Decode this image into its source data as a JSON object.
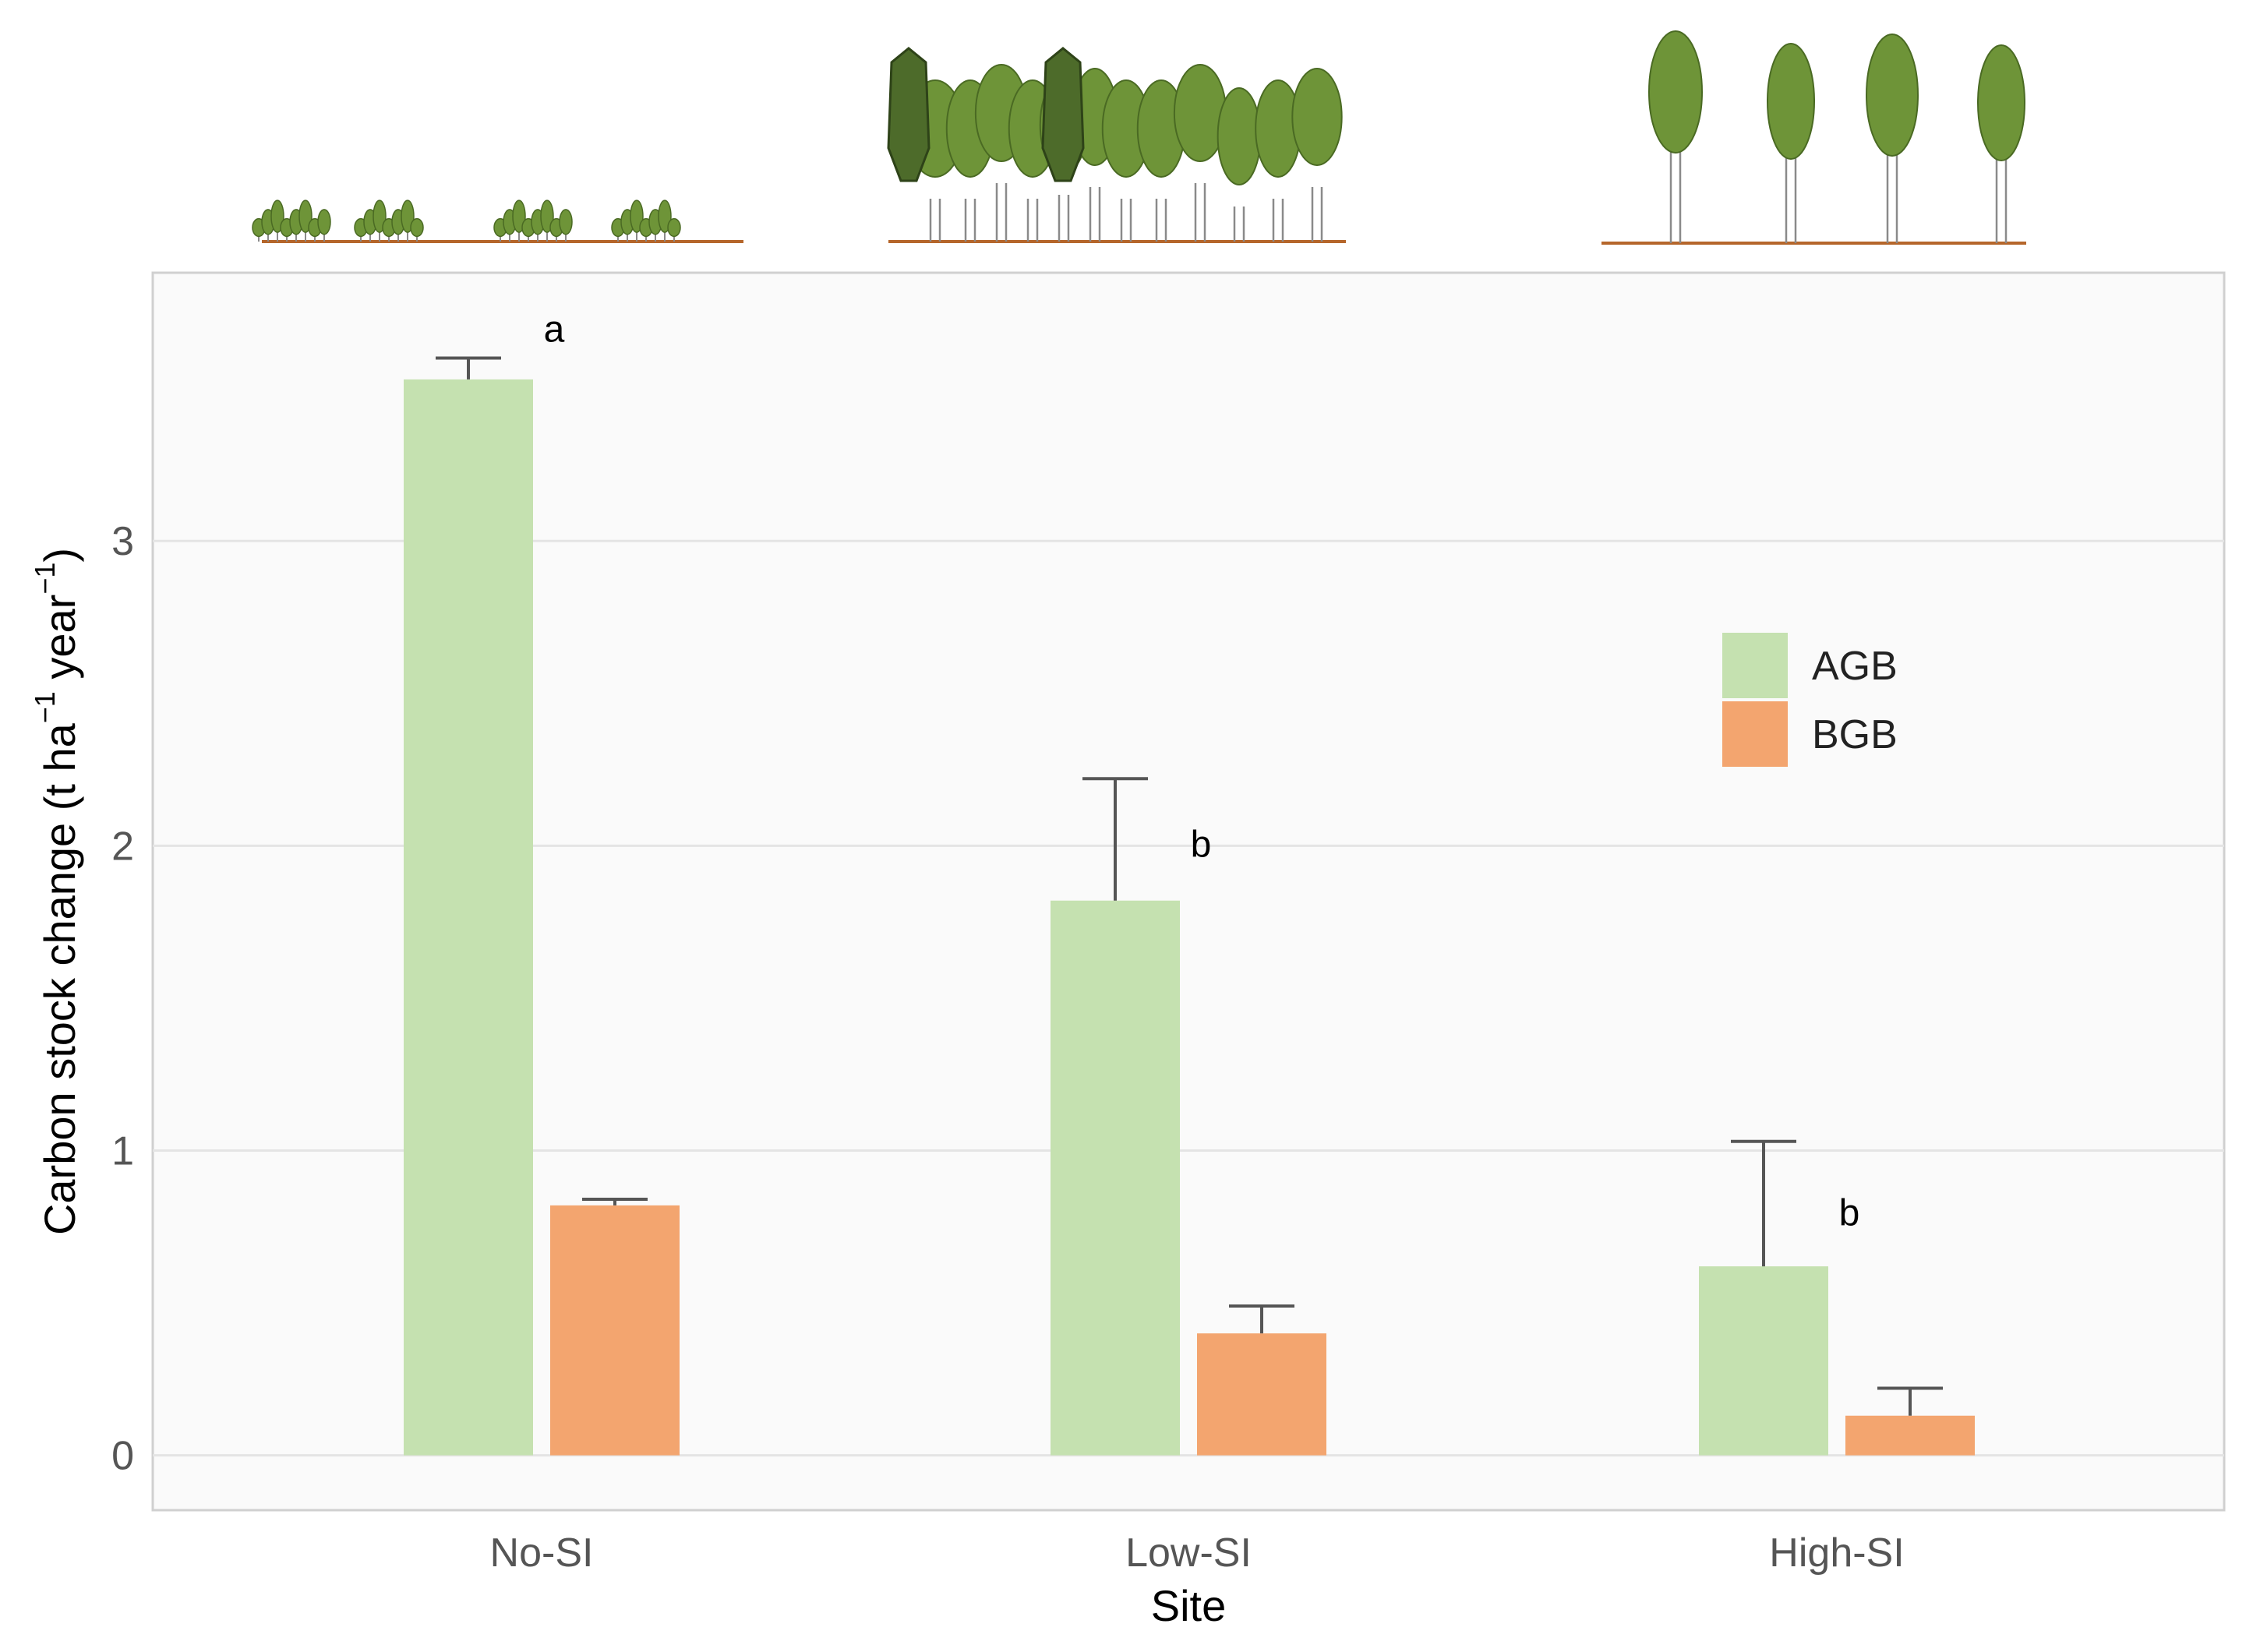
{
  "chart_data": {
    "type": "bar",
    "categories": [
      "No-SI",
      "Low-SI",
      "High-SI"
    ],
    "series": [
      {
        "name": "AGB",
        "values": [
          3.53,
          1.82,
          0.62
        ],
        "error": [
          0.07,
          0.4,
          0.41
        ],
        "letters": [
          "a",
          "b",
          "b"
        ]
      },
      {
        "name": "BGB",
        "values": [
          0.82,
          0.4,
          0.13
        ],
        "error": [
          0.02,
          0.09,
          0.09
        ]
      }
    ],
    "xlabel": "Site",
    "ylabel": "Carbon stock change (t ha",
    "ylabel_sup1": "−1",
    "ylabel_mid": " year",
    "ylabel_sup2": "−1",
    "ylabel_end": ")",
    "ylim": [
      -0.18,
      3.88
    ],
    "yticks": [
      "0",
      "1",
      "2",
      "3"
    ],
    "grid": true,
    "legend": "inside-right",
    "colors": {
      "AGB": "#c5e1b0",
      "BGB": "#f3a56f",
      "panel": "#fafafa",
      "error": "#555555"
    }
  },
  "illustrations": [
    "shrub-stand-icon",
    "dense-forest-icon",
    "sparse-forest-icon"
  ]
}
